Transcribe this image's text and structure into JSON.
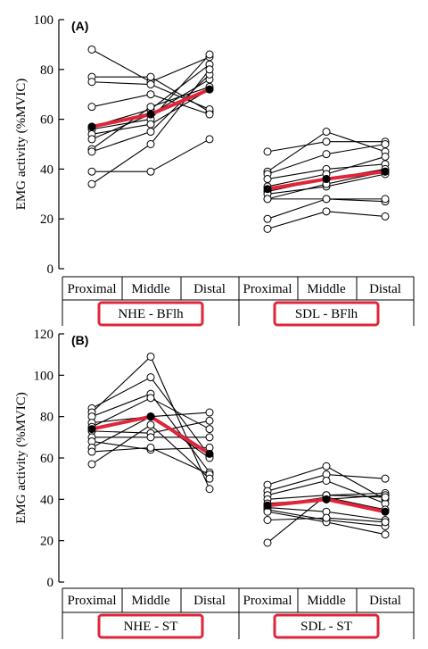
{
  "colors": {
    "mean_line": "#e0253b",
    "subject_line": "#000000",
    "marker_fill": "#ffffff",
    "highlight_box": "#e0253b"
  },
  "chart_data": [
    {
      "type": "line",
      "panel_label": "(A)",
      "ylabel": "EMG activity (%MVIC)",
      "ylim": [
        0,
        100
      ],
      "yticks": [
        0,
        20,
        40,
        60,
        80,
        100
      ],
      "groups": [
        {
          "name": "NHE - BFlh",
          "categories": [
            "Proximal",
            "Middle",
            "Distal"
          ],
          "subjects": [
            [
              88,
              75,
              85
            ],
            [
              77,
              77,
              63
            ],
            [
              75,
              74,
              64
            ],
            [
              65,
              70,
              62
            ],
            [
              57,
              64,
              82
            ],
            [
              56,
              60,
              86
            ],
            [
              54,
              58,
              72
            ],
            [
              52,
              62,
              76
            ],
            [
              48,
              65,
              73
            ],
            [
              47,
              55,
              78
            ],
            [
              39,
              39,
              52
            ],
            [
              34,
              50,
              80
            ]
          ],
          "mean": [
            57,
            62,
            72
          ]
        },
        {
          "name": "SDL - BFlh",
          "categories": [
            "Proximal",
            "Middle",
            "Distal"
          ],
          "subjects": [
            [
              47,
              51,
              51
            ],
            [
              39,
              55,
              47
            ],
            [
              38,
              46,
              50
            ],
            [
              36,
              40,
              42
            ],
            [
              33,
              38,
              45
            ],
            [
              31,
              36,
              40
            ],
            [
              30,
              33,
              38
            ],
            [
              28,
              34,
              39
            ],
            [
              28,
              28,
              27
            ],
            [
              20,
              28,
              28
            ],
            [
              16,
              23,
              21
            ]
          ],
          "mean": [
            32,
            36,
            39
          ]
        }
      ]
    },
    {
      "type": "line",
      "panel_label": "(B)",
      "ylabel": "EMG activity (%MVIC)",
      "ylim": [
        0,
        120
      ],
      "yticks": [
        0,
        20,
        40,
        60,
        80,
        100,
        120
      ],
      "groups": [
        {
          "name": "NHE - ST",
          "categories": [
            "Proximal",
            "Middle",
            "Distal"
          ],
          "subjects": [
            [
              84,
              99,
              61
            ],
            [
              82,
              109,
              45
            ],
            [
              80,
              91,
              53
            ],
            [
              77,
              80,
              82
            ],
            [
              75,
              89,
              74
            ],
            [
              73,
              72,
              78
            ],
            [
              70,
              70,
              70
            ],
            [
              68,
              64,
              65
            ],
            [
              65,
              80,
              60
            ],
            [
              63,
              65,
              52
            ],
            [
              57,
              76,
              50
            ]
          ],
          "mean": [
            74,
            80,
            62
          ]
        },
        {
          "name": "SDL - ST",
          "categories": [
            "Proximal",
            "Middle",
            "Distal"
          ],
          "subjects": [
            [
              47,
              56,
              40
            ],
            [
              44,
              52,
              50
            ],
            [
              42,
              49,
              38
            ],
            [
              40,
              42,
              43
            ],
            [
              38,
              40,
              42
            ],
            [
              37,
              41,
              35
            ],
            [
              36,
              34,
              30
            ],
            [
              35,
              30,
              27
            ],
            [
              34,
              29,
              23
            ],
            [
              30,
              31,
              29
            ],
            [
              19,
              42,
              41
            ]
          ],
          "mean": [
            37,
            40,
            34
          ]
        }
      ]
    }
  ]
}
